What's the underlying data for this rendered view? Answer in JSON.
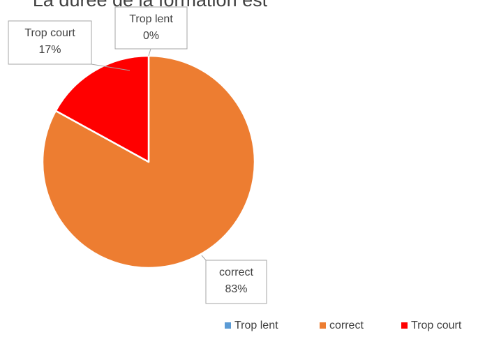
{
  "chart_data": {
    "type": "pie",
    "title": "La durée de la formation est",
    "categories": [
      "Trop lent",
      "correct",
      "Trop court"
    ],
    "values": [
      0,
      83,
      17
    ],
    "value_labels": [
      "0%",
      "83%",
      "17%"
    ],
    "colors": [
      "#5b9bd5",
      "#ed7d31",
      "#ff0000"
    ],
    "legend": "bottom"
  }
}
